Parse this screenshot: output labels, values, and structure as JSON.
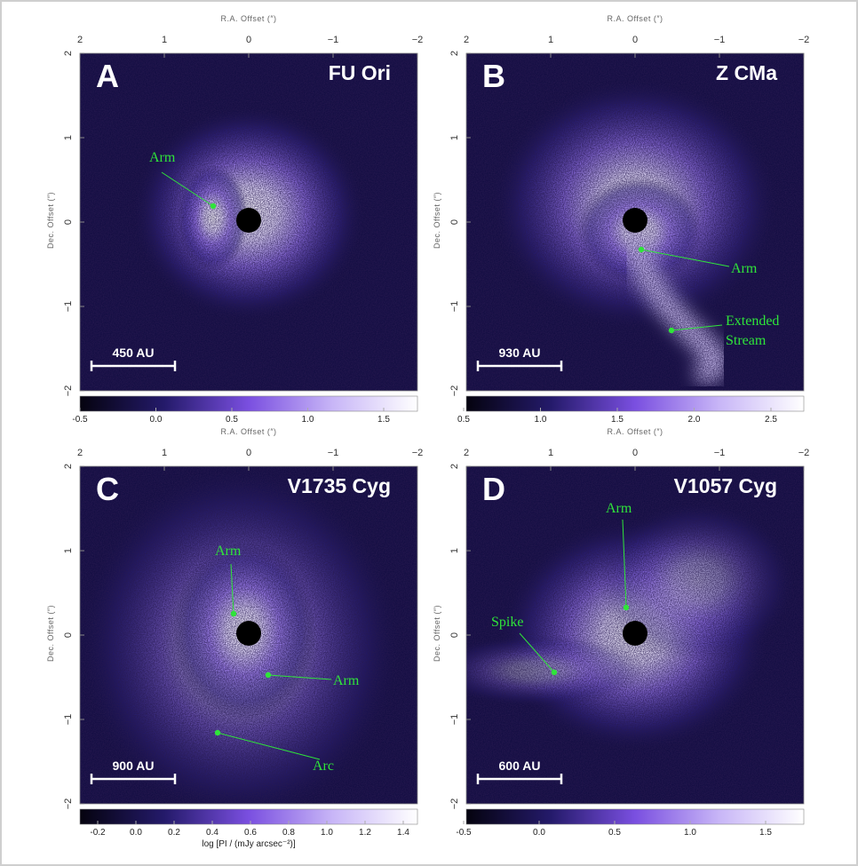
{
  "axis_titles": {
    "ra": "R.A. Offset (″)",
    "dec": "Dec. Offset (″)"
  },
  "ra_ticks": [
    "2",
    "1",
    "0",
    "−1",
    "−2"
  ],
  "dec_ticks": [
    "2",
    "1",
    "0",
    "−1",
    "−2"
  ],
  "colorbar_title": "log [PI / (mJy arcsec⁻²)]",
  "panels": [
    {
      "letter": "A",
      "object": "FU Ori",
      "scale_bar": "450 AU",
      "colorbar_ticks": [
        "-0.5",
        "0.0",
        "0.5",
        "1.0",
        "1.5"
      ],
      "annotations": [
        {
          "lines": [
            "Arm"
          ]
        }
      ]
    },
    {
      "letter": "B",
      "object": "Z CMa",
      "scale_bar": "930 AU",
      "colorbar_ticks": [
        "0.5",
        "1.0",
        "1.5",
        "2.0",
        "2.5"
      ],
      "annotations": [
        {
          "lines": [
            "Arm"
          ]
        },
        {
          "lines": [
            "Extended",
            "Stream"
          ]
        }
      ]
    },
    {
      "letter": "C",
      "object": "V1735 Cyg",
      "scale_bar": "900 AU",
      "colorbar_ticks": [
        "-0.2",
        "0.0",
        "0.2",
        "0.4",
        "0.6",
        "0.8",
        "1.0",
        "1.2",
        "1.4"
      ],
      "annotations": [
        {
          "lines": [
            "Arm"
          ]
        },
        {
          "lines": [
            "Arm"
          ]
        },
        {
          "lines": [
            "Arc"
          ]
        }
      ]
    },
    {
      "letter": "D",
      "object": "V1057 Cyg",
      "scale_bar": "600 AU",
      "colorbar_ticks": [
        "-0.5",
        "0.0",
        "0.5",
        "1.0",
        "1.5"
      ],
      "annotations": [
        {
          "lines": [
            "Arm"
          ]
        },
        {
          "lines": [
            "Spike"
          ]
        }
      ]
    }
  ]
}
